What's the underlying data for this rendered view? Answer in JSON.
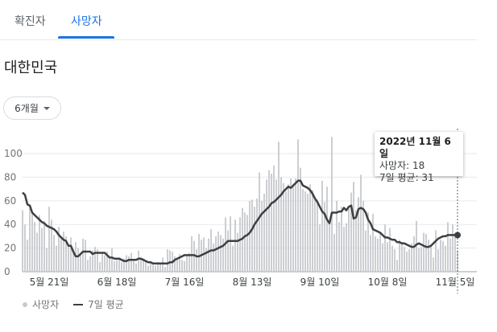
{
  "tabs": [
    {
      "label": "확진자",
      "active": false
    },
    {
      "label": "사망자",
      "active": true
    }
  ],
  "region_title": "대한민국",
  "range_selector": {
    "label": "6개월"
  },
  "tooltip": {
    "date": "2022년 11월 6일",
    "deaths_line": "사망자: 18",
    "avg_line": "7일 평균: 31"
  },
  "legend": {
    "bars": "사망자",
    "line": "7일 평균"
  },
  "colors": {
    "accent": "#1a73e8",
    "bar": "#c6c9ce",
    "line": "#3c4043",
    "grid": "#e8eaed"
  },
  "chart_data": {
    "type": "bar",
    "title": "",
    "xlabel": "",
    "ylabel": "",
    "ylim": [
      0,
      115
    ],
    "y_ticks": [
      0,
      20,
      40,
      60,
      80,
      100
    ],
    "x_tick_labels": [
      "5월 21일",
      "6월 18일",
      "7월 16일",
      "8월 13일",
      "9월 10일",
      "10월 8일",
      "11월 5일"
    ],
    "x_tick_days": [
      11,
      39,
      67,
      95,
      123,
      151,
      179
    ],
    "start_date": "2022-05-10",
    "series": [
      {
        "name": "사망자",
        "kind": "bar",
        "values": [
          52,
          40,
          27,
          54,
          50,
          42,
          33,
          48,
          37,
          43,
          20,
          55,
          44,
          31,
          22,
          38,
          28,
          34,
          30,
          23,
          29,
          19,
          25,
          20,
          15,
          28,
          27,
          10,
          13,
          18,
          21,
          19,
          8,
          16,
          14,
          17,
          11,
          20,
          9,
          10,
          12,
          8,
          11,
          14,
          13,
          16,
          9,
          7,
          18,
          11,
          10,
          9,
          5,
          7,
          6,
          5,
          8,
          7,
          12,
          4,
          19,
          18,
          17,
          13,
          11,
          15,
          10,
          9,
          14,
          16,
          30,
          26,
          19,
          32,
          27,
          29,
          20,
          28,
          36,
          24,
          30,
          34,
          31,
          28,
          46,
          35,
          47,
          22,
          44,
          33,
          46,
          54,
          50,
          48,
          60,
          61,
          55,
          62,
          84,
          60,
          66,
          78,
          86,
          83,
          90,
          78,
          110,
          80,
          75,
          68,
          74,
          79,
          72,
          79,
          112,
          88,
          70,
          68,
          66,
          74,
          69,
          62,
          61,
          40,
          77,
          59,
          72,
          42,
          114,
          32,
          60,
          42,
          55,
          38,
          41,
          54,
          67,
          76,
          52,
          63,
          82,
          60,
          35,
          50,
          31,
          49,
          30,
          28,
          33,
          24,
          40,
          25,
          37,
          22,
          19,
          10,
          27,
          25,
          21,
          17,
          19,
          24,
          30,
          43,
          20,
          21,
          33,
          32,
          27,
          23,
          12,
          35,
          19,
          27,
          26,
          22,
          42,
          28,
          40,
          32,
          18
        ],
        "tooltip_index": 180
      },
      {
        "name": "7일 평균",
        "kind": "line",
        "values": [
          67,
          65,
          57,
          56,
          50,
          48,
          46,
          44,
          42,
          41,
          39,
          38,
          37,
          36,
          34,
          31,
          29,
          27,
          26,
          22,
          22,
          17,
          13,
          13,
          15,
          17,
          17,
          17,
          17,
          15,
          16,
          16,
          16,
          16,
          16,
          14,
          12,
          12,
          11,
          11,
          11,
          10,
          9,
          9,
          10,
          10,
          10,
          10,
          11,
          11,
          10,
          9,
          8,
          8,
          7,
          7,
          7,
          7,
          7,
          7,
          7,
          8,
          8,
          10,
          11,
          12,
          13,
          14,
          14,
          14,
          14,
          14,
          13,
          13,
          14,
          15,
          16,
          17,
          18,
          18,
          19,
          20,
          21,
          22,
          24,
          26,
          26,
          26,
          26,
          26,
          27,
          28,
          30,
          31,
          33,
          36,
          40,
          43,
          46,
          49,
          51,
          53,
          55,
          58,
          59,
          61,
          63,
          65,
          68,
          70,
          72,
          71,
          73,
          75,
          77,
          77,
          73,
          72,
          71,
          69,
          66,
          62,
          59,
          55,
          51,
          49,
          44,
          41,
          50,
          50,
          50,
          51,
          51,
          54,
          52,
          55,
          56,
          45,
          46,
          53,
          54,
          53,
          50,
          44,
          41,
          36,
          35,
          34,
          33,
          31,
          29,
          29,
          28,
          27,
          27,
          25,
          25,
          24,
          24,
          23,
          22,
          21,
          21,
          23,
          24,
          23,
          22,
          21,
          21,
          22,
          24,
          26,
          28,
          29,
          30,
          30,
          31,
          31,
          31,
          31,
          31
        ]
      }
    ]
  }
}
